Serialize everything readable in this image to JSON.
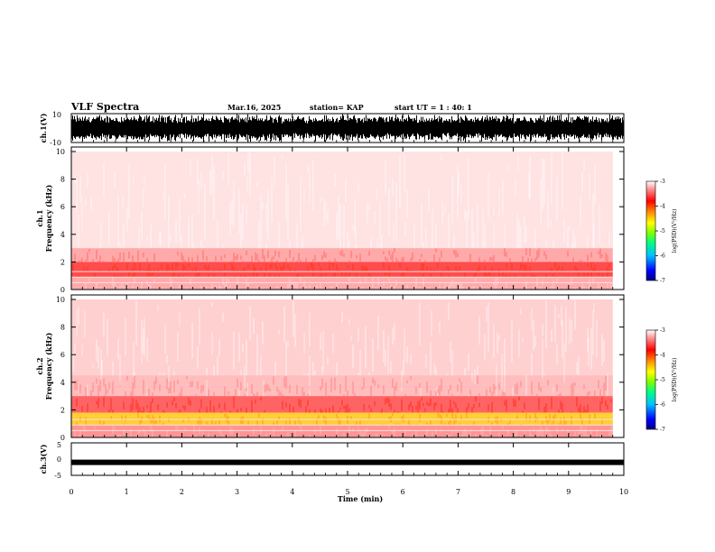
{
  "header": {
    "title": "VLF Spectra",
    "date": "Mar.16, 2025",
    "station": "station= KAP",
    "start_ut": "start UT =  1 : 40: 1"
  },
  "chart_data": [
    {
      "type": "line",
      "panel": "ch1-waveform",
      "ylabel": "ch.1(V)",
      "ylim": [
        -10,
        10
      ],
      "y_ticks": [
        "10",
        "-10"
      ],
      "xlim": [
        0,
        10
      ],
      "note_series": "dense oscillating voltage waveform saturating near +/-10 V"
    },
    {
      "type": "heatmap",
      "panel": "ch1-spectrogram",
      "ylabel": "ch.1\nFrequency (kHz)",
      "ylim": [
        0,
        10
      ],
      "y_ticks": [
        "0",
        "2",
        "4",
        "6",
        "8",
        "10"
      ],
      "xlim": [
        0,
        10
      ],
      "data_end_min": 9.8,
      "bands_khz": [
        {
          "from": 0,
          "to": 0.9,
          "level": -3.4
        },
        {
          "from": 0.9,
          "to": 1.3,
          "level": -3.8
        },
        {
          "from": 1.3,
          "to": 2.0,
          "level": -3.8
        },
        {
          "from": 2.0,
          "to": 3.0,
          "level": -3.4
        },
        {
          "from": 3.0,
          "to": 10,
          "level": -3.1
        }
      ],
      "colorbar": {
        "label": "log(PSD)(V²/Hz)",
        "range": [
          -7,
          -3
        ],
        "ticks": [
          "-3",
          "-4",
          "-5",
          "-6",
          "-7"
        ]
      }
    },
    {
      "type": "heatmap",
      "panel": "ch2-spectrogram",
      "ylabel": "ch.2\nFrequency (kHz)",
      "ylim": [
        0,
        10
      ],
      "y_ticks": [
        "0",
        "2",
        "4",
        "6",
        "8",
        "10"
      ],
      "xlim": [
        0,
        10
      ],
      "data_end_min": 9.8,
      "bands_khz": [
        {
          "from": 0,
          "to": 0.9,
          "level": -3.5
        },
        {
          "from": 0.9,
          "to": 1.8,
          "level": -4.6
        },
        {
          "from": 1.8,
          "to": 3.0,
          "level": -3.7
        },
        {
          "from": 3.0,
          "to": 4.5,
          "level": -3.3
        },
        {
          "from": 4.5,
          "to": 10,
          "level": -3.2
        }
      ],
      "colorbar": {
        "label": "log(PSD)(V²/Hz)",
        "range": [
          -7,
          -3
        ],
        "ticks": [
          "-3",
          "-4",
          "-5",
          "-6",
          "-7"
        ]
      }
    },
    {
      "type": "line",
      "panel": "ch3-waveform",
      "ylabel": "ch.3(V)",
      "ylim": [
        -5,
        5
      ],
      "y_ticks": [
        "5",
        "0",
        "-5"
      ],
      "xlim": [
        0,
        10
      ],
      "level": -1,
      "note_series": "near-constant thick trace around -1 V"
    }
  ],
  "x_axis": {
    "xlabel": "Time (min)",
    "ticks": [
      "0",
      "1",
      "2",
      "3",
      "4",
      "5",
      "6",
      "7",
      "8",
      "9",
      "10"
    ]
  },
  "colors": {
    "axis": "#000000",
    "colormap": [
      "#000080",
      "#0000ff",
      "#00c0ff",
      "#00ff80",
      "#80ff00",
      "#ffff00",
      "#ff8000",
      "#ff0000",
      "#ff9090",
      "#ffffff"
    ]
  }
}
